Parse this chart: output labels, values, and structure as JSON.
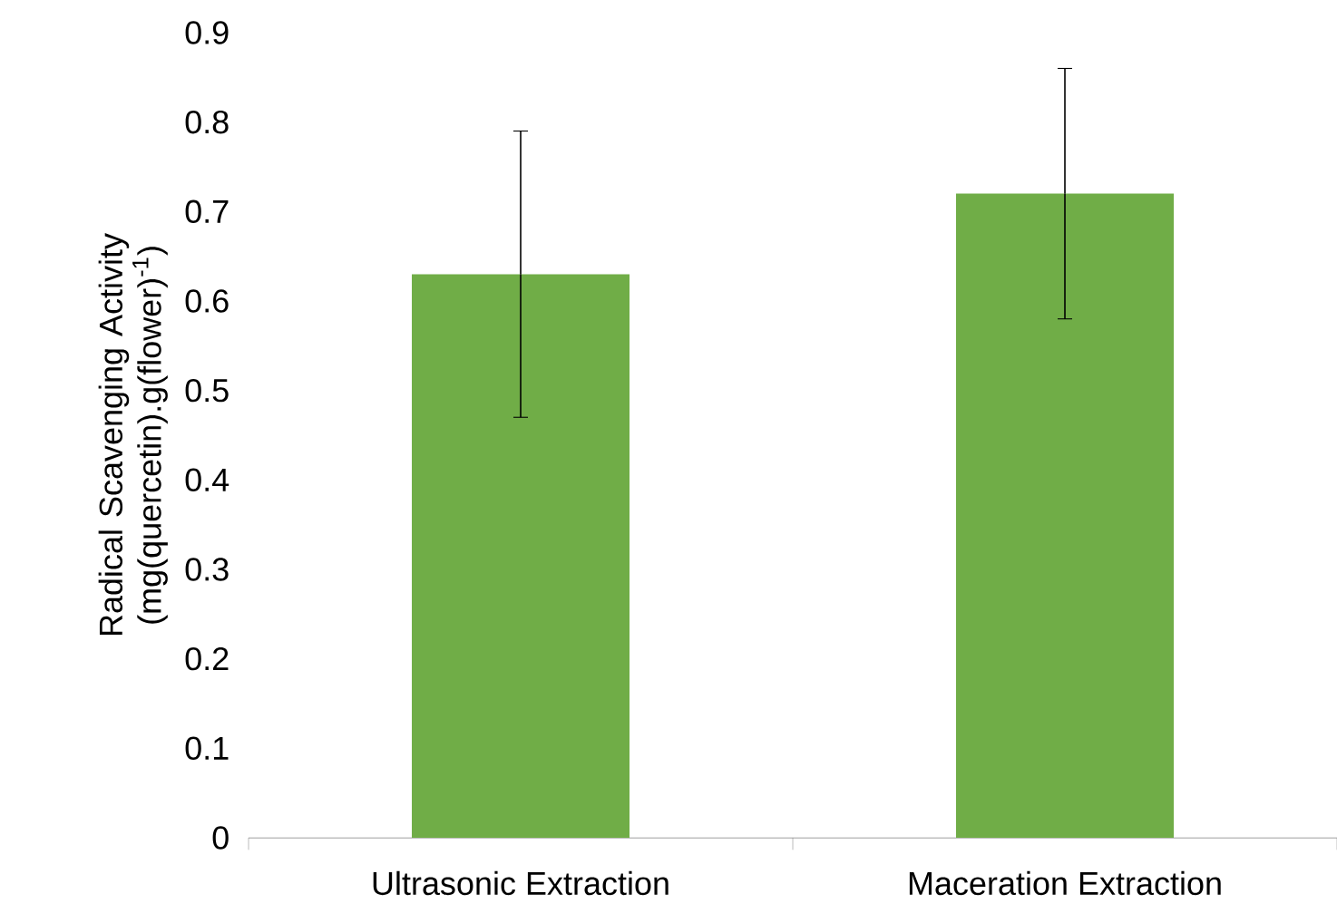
{
  "chart_data": {
    "type": "bar",
    "ylabel": "Radical Scavenging Activity (mg(quercetin).g(flower)$^{-1}$)",
    "categories": [
      "Ultrasonic Extraction",
      "Maceration Extraction"
    ],
    "values": [
      0.63,
      0.72
    ],
    "errors": [
      0.16,
      0.14
    ],
    "color": "#70ad47",
    "ylim": [
      0,
      0.9
    ],
    "yticks": [
      0,
      0.1,
      0.2,
      0.3,
      0.4,
      0.5,
      0.6,
      0.7,
      0.8,
      0.9
    ],
    "grid": false
  }
}
